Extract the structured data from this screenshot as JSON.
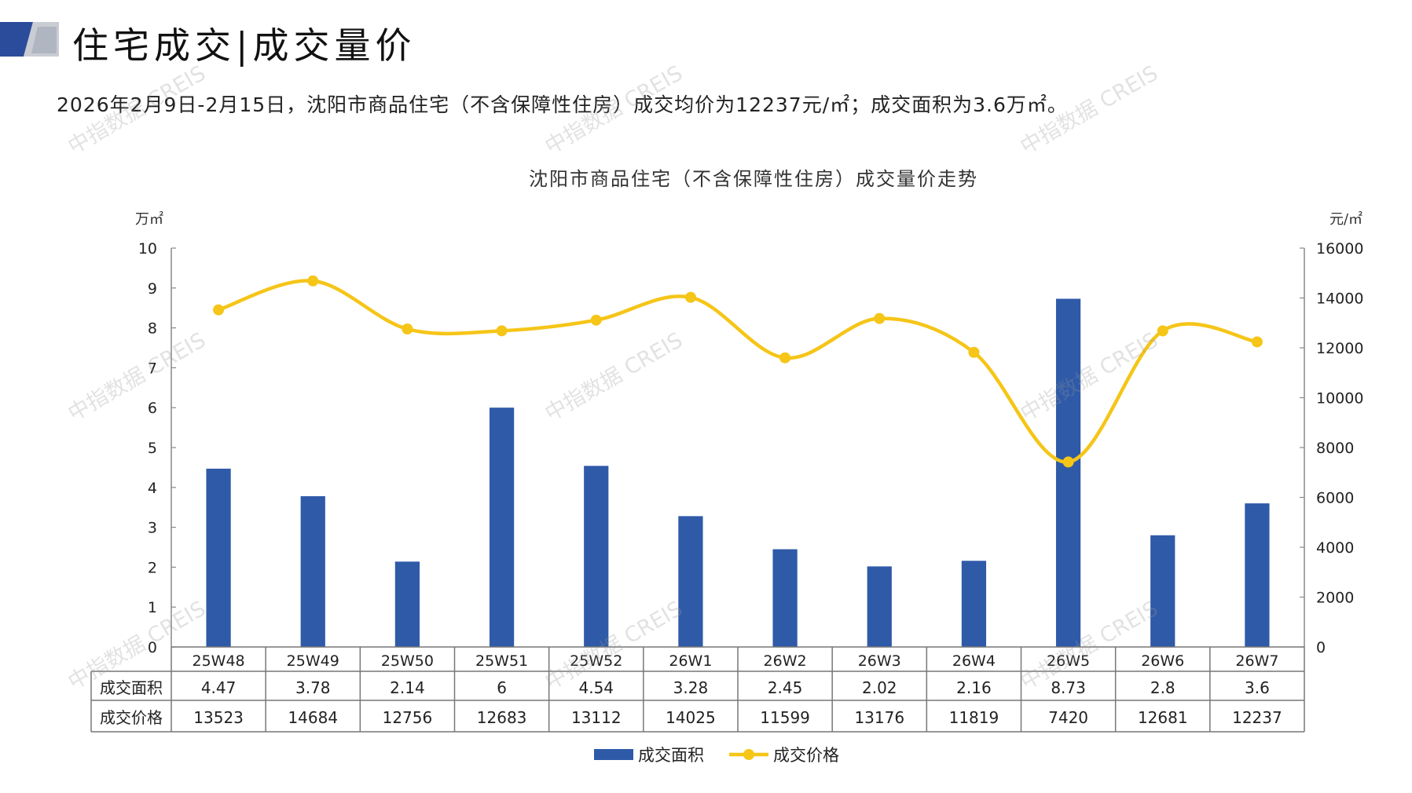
{
  "header": {
    "title": "住宅成交|成交量价",
    "summary": "2026年2月9日-2月15日，沈阳市商品住宅（不含保障性住房）成交均价为12237元/㎡；成交面积为3.6万㎡。"
  },
  "watermark_text": "中指数据 CREIS",
  "colors": {
    "bar": "#2F5AA8",
    "line": "#F5C518",
    "logo_dark": "#2B4C9B",
    "logo_light": "#C9CCD3"
  },
  "chart_data": {
    "type": "bar+line",
    "title": "沈阳市商品住宅（不含保障性住房）成交量价走势",
    "categories": [
      "25W48",
      "25W49",
      "25W50",
      "25W51",
      "25W52",
      "26W1",
      "26W2",
      "26W3",
      "26W4",
      "26W5",
      "26W6",
      "26W7"
    ],
    "series": [
      {
        "name": "成交面积",
        "type": "bar",
        "axis": "left",
        "values": [
          4.47,
          3.78,
          2.14,
          6,
          4.54,
          3.28,
          2.45,
          2.02,
          2.16,
          8.73,
          2.8,
          3.6
        ],
        "table_labels": [
          "4.47",
          "3.78",
          "2.14",
          "6",
          "4.54",
          "3.28",
          "2.45",
          "2.02",
          "2.16",
          "8.73",
          "2.8",
          "3.6"
        ]
      },
      {
        "name": "成交价格",
        "type": "line",
        "axis": "right",
        "values": [
          13523,
          14684,
          12756,
          12683,
          13112,
          14025,
          11599,
          13176,
          11819,
          7420,
          12681,
          12237
        ],
        "table_labels": [
          "13523",
          "14684",
          "12756",
          "12683",
          "13112",
          "14025",
          "11599",
          "13176",
          "11819",
          "7420",
          "12681",
          "12237"
        ]
      }
    ],
    "y_left": {
      "unit": "万㎡",
      "ylim": [
        0,
        10
      ],
      "ticks": [
        "0",
        "1",
        "2",
        "3",
        "4",
        "5",
        "6",
        "7",
        "8",
        "9",
        "10"
      ]
    },
    "y_right": {
      "unit": "元/㎡",
      "ylim": [
        0,
        16000
      ],
      "ticks": [
        "0",
        "2000",
        "4000",
        "6000",
        "8000",
        "10000",
        "12000",
        "14000",
        "16000"
      ]
    },
    "legend_position": "bottom-center",
    "data_table": true,
    "grid": false
  }
}
